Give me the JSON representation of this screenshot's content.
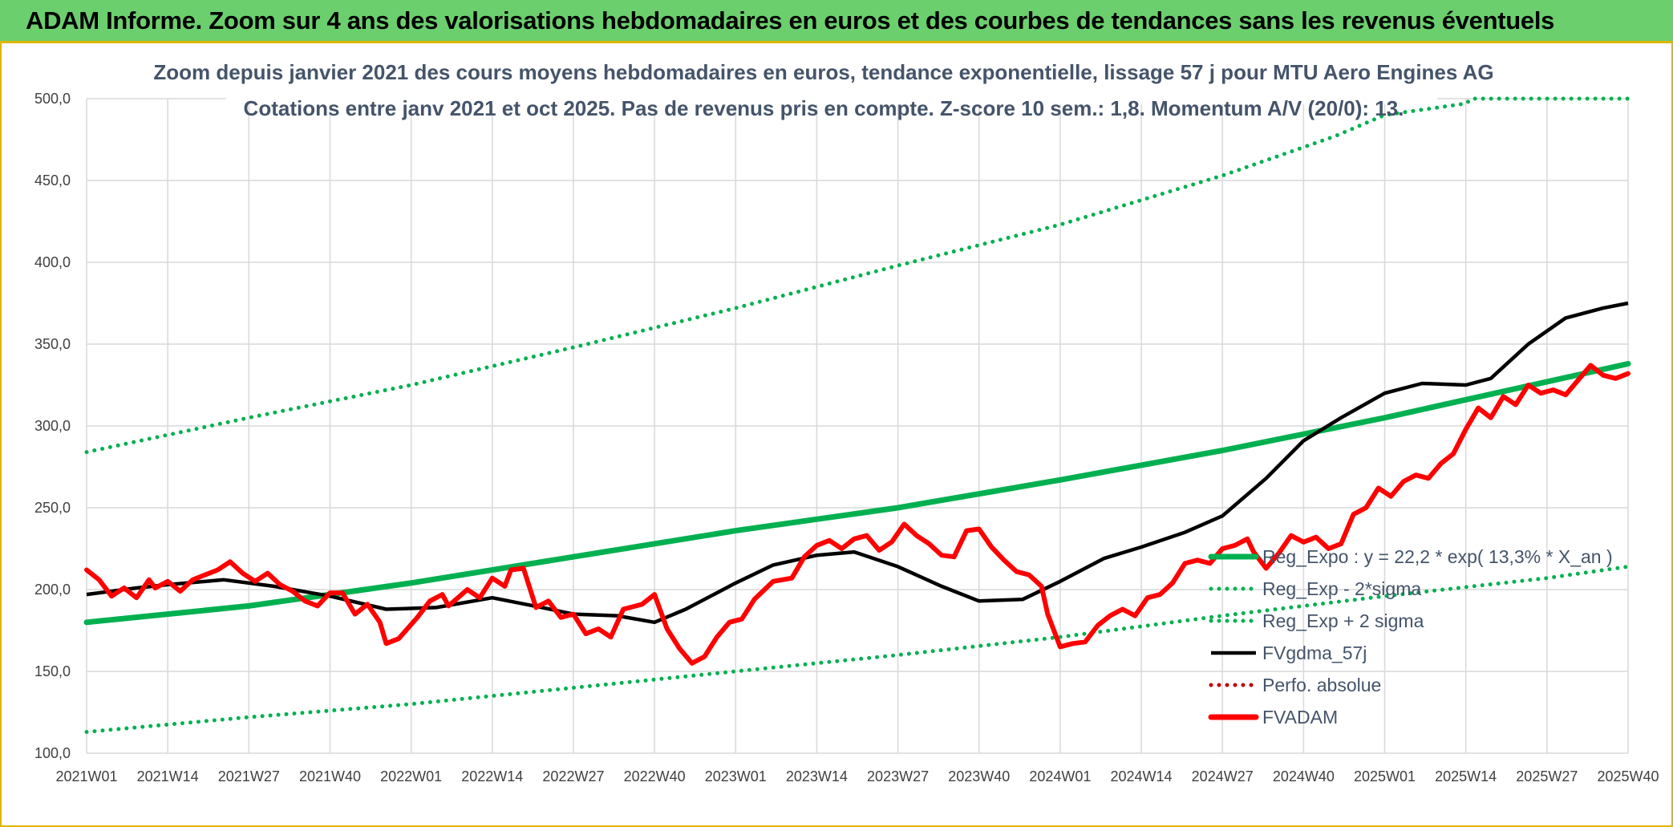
{
  "banner": {
    "title": "ADAM Informe. Zoom sur 4 ans des valorisations hebdomadaires en euros et des courbes de tendances sans les revenus éventuels"
  },
  "colors": {
    "banner_bg": "#6ccf6e",
    "banner_border": "#e0b400",
    "trend": "#00b050",
    "price": "#ff0000",
    "ma": "#000000",
    "perf": "#c00000",
    "grid": "#d9d9d9",
    "subtitle": "#44546a"
  },
  "chart_data": {
    "type": "line",
    "title_line1": "Zoom depuis janvier 2021 des cours moyens hebdomadaires en euros, tendance exponentielle, lissage 57 j pour MTU Aero Engines AG",
    "title_line2": "Cotations entre janv 2021 et oct 2025. Pas de revenus pris en compte. Z-score 10 sem.: 1,8. Momentum A/V (20/0): 13.",
    "xlabel": "",
    "ylabel": "",
    "x_range_weeks": [
      0,
      247
    ],
    "ylim": [
      100,
      500
    ],
    "y_ticks": [
      "100,0",
      "150,0",
      "200,0",
      "250,0",
      "300,0",
      "350,0",
      "400,0",
      "450,0",
      "500,0"
    ],
    "x_ticks": [
      {
        "w": 0,
        "label": "2021W01"
      },
      {
        "w": 13,
        "label": "2021W14"
      },
      {
        "w": 26,
        "label": "2021W27"
      },
      {
        "w": 39,
        "label": "2021W40"
      },
      {
        "w": 52,
        "label": "2022W01"
      },
      {
        "w": 65,
        "label": "2022W14"
      },
      {
        "w": 78,
        "label": "2022W27"
      },
      {
        "w": 91,
        "label": "2022W40"
      },
      {
        "w": 104,
        "label": "2023W01"
      },
      {
        "w": 117,
        "label": "2023W14"
      },
      {
        "w": 130,
        "label": "2023W27"
      },
      {
        "w": 143,
        "label": "2023W40"
      },
      {
        "w": 156,
        "label": "2024W01"
      },
      {
        "w": 169,
        "label": "2024W14"
      },
      {
        "w": 182,
        "label": "2024W27"
      },
      {
        "w": 195,
        "label": "2024W40"
      },
      {
        "w": 208,
        "label": "2025W01"
      },
      {
        "w": 221,
        "label": "2025W14"
      },
      {
        "w": 234,
        "label": "2025W27"
      },
      {
        "w": 247,
        "label": "2025W40"
      }
    ],
    "grid": true,
    "legend_position": "lower-right",
    "series": [
      {
        "name": "Reg_Expo : y = 22,2 * exp( 13,3% *  X_an )",
        "style": "solid-thick",
        "color": "#00b050",
        "points": [
          [
            0,
            180
          ],
          [
            26,
            190
          ],
          [
            52,
            204
          ],
          [
            78,
            220
          ],
          [
            104,
            236
          ],
          [
            130,
            250
          ],
          [
            156,
            267
          ],
          [
            182,
            285
          ],
          [
            208,
            305
          ],
          [
            234,
            327
          ],
          [
            247,
            338
          ]
        ]
      },
      {
        "name": "Reg_Exp - 2*sigma",
        "style": "dotted",
        "color": "#00b050",
        "points": [
          [
            0,
            113
          ],
          [
            26,
            122
          ],
          [
            52,
            130
          ],
          [
            78,
            140
          ],
          [
            104,
            150
          ],
          [
            130,
            160
          ],
          [
            156,
            171
          ],
          [
            182,
            184
          ],
          [
            208,
            196
          ],
          [
            234,
            207
          ],
          [
            247,
            214
          ]
        ]
      },
      {
        "name": "Reg_Exp + 2 sigma",
        "style": "dotted",
        "color": "#00b050",
        "points": [
          [
            0,
            284
          ],
          [
            26,
            305
          ],
          [
            52,
            325
          ],
          [
            78,
            348
          ],
          [
            104,
            372
          ],
          [
            130,
            398
          ],
          [
            156,
            423
          ],
          [
            182,
            453
          ],
          [
            200,
            477
          ],
          [
            208,
            490
          ],
          [
            221,
            497
          ],
          [
            222,
            500
          ],
          [
            247,
            500
          ]
        ]
      },
      {
        "name": "FVgdma_57j",
        "style": "solid",
        "color": "#000000",
        "points": [
          [
            0,
            197
          ],
          [
            8,
            201
          ],
          [
            13,
            203
          ],
          [
            22,
            206
          ],
          [
            30,
            202
          ],
          [
            39,
            196
          ],
          [
            48,
            188
          ],
          [
            56,
            189
          ],
          [
            65,
            195
          ],
          [
            73,
            189
          ],
          [
            78,
            185
          ],
          [
            85,
            184
          ],
          [
            91,
            180
          ],
          [
            96,
            188
          ],
          [
            104,
            204
          ],
          [
            110,
            215
          ],
          [
            117,
            221
          ],
          [
            123,
            223
          ],
          [
            130,
            214
          ],
          [
            137,
            202
          ],
          [
            143,
            193
          ],
          [
            150,
            194
          ],
          [
            156,
            205
          ],
          [
            163,
            219
          ],
          [
            169,
            226
          ],
          [
            176,
            235
          ],
          [
            182,
            245
          ],
          [
            189,
            268
          ],
          [
            195,
            291
          ],
          [
            201,
            305
          ],
          [
            208,
            320
          ],
          [
            214,
            326
          ],
          [
            221,
            325
          ],
          [
            225,
            329
          ],
          [
            231,
            350
          ],
          [
            237,
            366
          ],
          [
            243,
            372
          ],
          [
            247,
            375
          ]
        ]
      },
      {
        "name": "Perfo. absolue",
        "style": "dotted",
        "color": "#c00000",
        "points": []
      },
      {
        "name": "FVADAM",
        "style": "solid-thick",
        "color": "#ff0000",
        "points": [
          [
            0,
            212
          ],
          [
            2,
            206
          ],
          [
            4,
            196
          ],
          [
            6,
            201
          ],
          [
            8,
            195
          ],
          [
            10,
            206
          ],
          [
            11,
            201
          ],
          [
            13,
            205
          ],
          [
            15,
            199
          ],
          [
            17,
            206
          ],
          [
            19,
            209
          ],
          [
            21,
            212
          ],
          [
            23,
            217
          ],
          [
            25,
            210
          ],
          [
            27,
            205
          ],
          [
            29,
            210
          ],
          [
            31,
            203
          ],
          [
            33,
            199
          ],
          [
            35,
            193
          ],
          [
            37,
            190
          ],
          [
            39,
            198
          ],
          [
            41,
            198
          ],
          [
            43,
            185
          ],
          [
            45,
            191
          ],
          [
            47,
            180
          ],
          [
            48,
            167
          ],
          [
            50,
            170
          ],
          [
            53,
            183
          ],
          [
            55,
            193
          ],
          [
            57,
            197
          ],
          [
            58,
            190
          ],
          [
            61,
            200
          ],
          [
            63,
            195
          ],
          [
            65,
            207
          ],
          [
            67,
            202
          ],
          [
            68,
            212
          ],
          [
            70,
            213
          ],
          [
            72,
            189
          ],
          [
            74,
            193
          ],
          [
            76,
            183
          ],
          [
            78,
            185
          ],
          [
            80,
            173
          ],
          [
            82,
            176
          ],
          [
            84,
            171
          ],
          [
            86,
            188
          ],
          [
            89,
            191
          ],
          [
            91,
            197
          ],
          [
            93,
            176
          ],
          [
            95,
            164
          ],
          [
            97,
            155
          ],
          [
            99,
            159
          ],
          [
            101,
            171
          ],
          [
            103,
            180
          ],
          [
            105,
            182
          ],
          [
            107,
            194
          ],
          [
            110,
            205
          ],
          [
            113,
            207
          ],
          [
            115,
            220
          ],
          [
            117,
            227
          ],
          [
            119,
            230
          ],
          [
            121,
            225
          ],
          [
            123,
            231
          ],
          [
            125,
            233
          ],
          [
            127,
            224
          ],
          [
            129,
            229
          ],
          [
            131,
            240
          ],
          [
            133,
            233
          ],
          [
            135,
            228
          ],
          [
            137,
            221
          ],
          [
            139,
            220
          ],
          [
            141,
            236
          ],
          [
            143,
            237
          ],
          [
            145,
            226
          ],
          [
            147,
            218
          ],
          [
            149,
            211
          ],
          [
            151,
            209
          ],
          [
            153,
            202
          ],
          [
            154,
            185
          ],
          [
            156,
            165
          ],
          [
            158,
            167
          ],
          [
            160,
            168
          ],
          [
            162,
            178
          ],
          [
            164,
            184
          ],
          [
            166,
            188
          ],
          [
            168,
            184
          ],
          [
            170,
            195
          ],
          [
            172,
            197
          ],
          [
            174,
            204
          ],
          [
            176,
            216
          ],
          [
            178,
            218
          ],
          [
            180,
            216
          ],
          [
            182,
            225
          ],
          [
            184,
            227
          ],
          [
            186,
            231
          ],
          [
            187,
            223
          ],
          [
            189,
            213
          ],
          [
            191,
            222
          ],
          [
            193,
            233
          ],
          [
            195,
            229
          ],
          [
            197,
            232
          ],
          [
            199,
            225
          ],
          [
            201,
            228
          ],
          [
            203,
            246
          ],
          [
            205,
            250
          ],
          [
            207,
            262
          ],
          [
            209,
            257
          ],
          [
            211,
            266
          ],
          [
            213,
            270
          ],
          [
            215,
            268
          ],
          [
            217,
            277
          ],
          [
            219,
            283
          ],
          [
            221,
            298
          ],
          [
            223,
            311
          ],
          [
            225,
            305
          ],
          [
            227,
            318
          ],
          [
            229,
            313
          ],
          [
            231,
            325
          ],
          [
            233,
            320
          ],
          [
            235,
            322
          ],
          [
            237,
            319
          ],
          [
            239,
            328
          ],
          [
            241,
            337
          ],
          [
            243,
            331
          ],
          [
            245,
            329
          ],
          [
            247,
            332
          ]
        ]
      }
    ]
  }
}
